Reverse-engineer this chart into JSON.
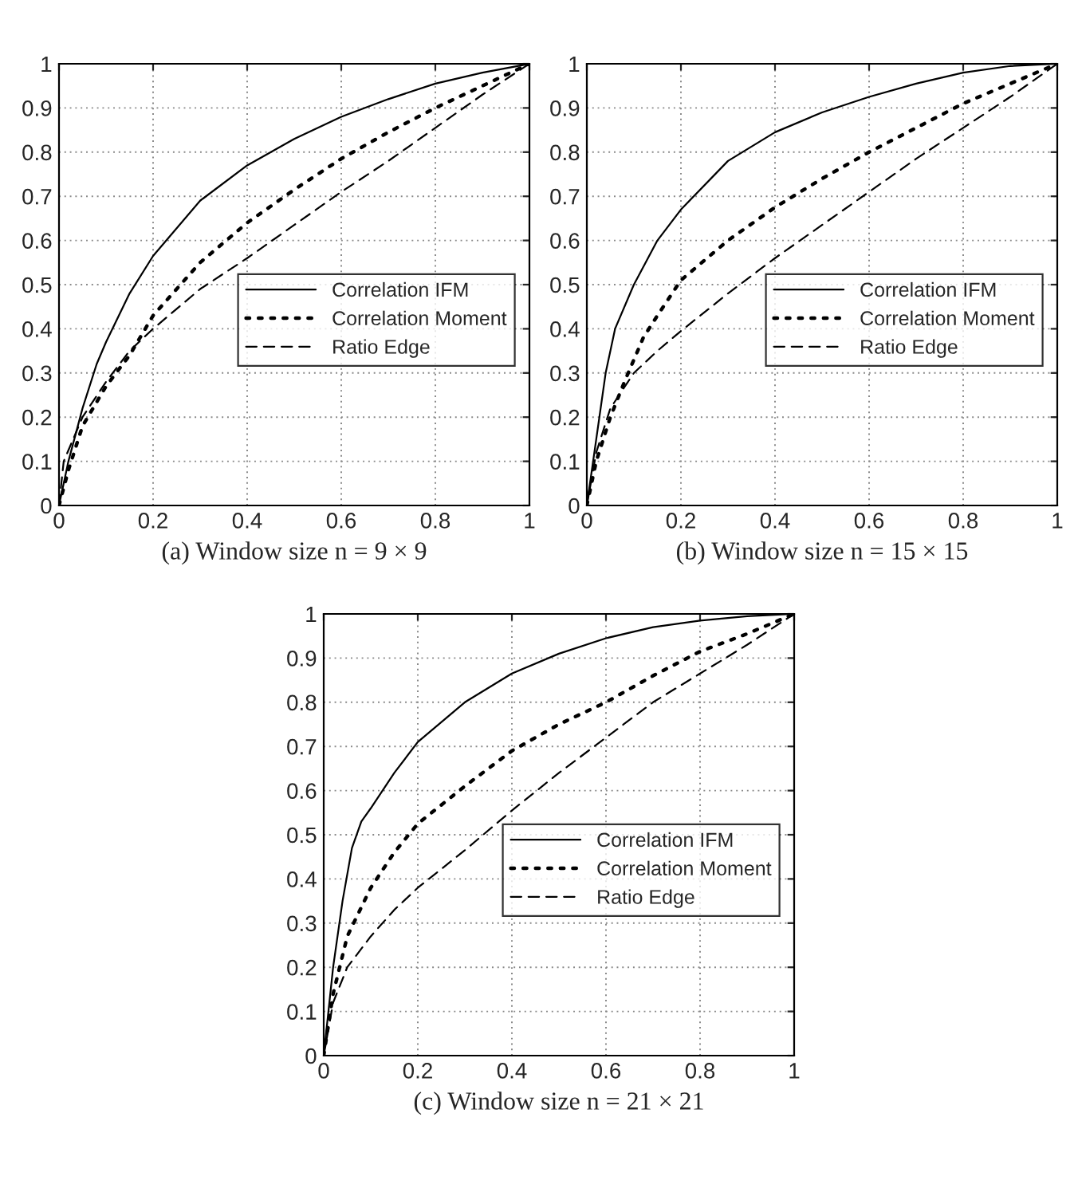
{
  "chart_data": [
    {
      "type": "line",
      "xlabel": "(a) Window size n = 9 × 9",
      "xlim": [
        0,
        1
      ],
      "ylim": [
        0,
        1
      ],
      "xticks": [
        0,
        0.2,
        0.4,
        0.6,
        0.8,
        1
      ],
      "yticks": [
        0,
        0.1,
        0.2,
        0.3,
        0.4,
        0.5,
        0.6,
        0.7,
        0.8,
        0.9,
        1
      ],
      "grid": true,
      "legend": "right",
      "series": [
        {
          "name": "Correlation IFM",
          "color": "#000000",
          "line_style": "solid",
          "x": [
            0,
            0.02,
            0.05,
            0.08,
            0.1,
            0.15,
            0.2,
            0.3,
            0.4,
            0.5,
            0.6,
            0.7,
            0.8,
            0.9,
            1
          ],
          "values": [
            0,
            0.1,
            0.22,
            0.32,
            0.37,
            0.48,
            0.565,
            0.69,
            0.77,
            0.83,
            0.88,
            0.92,
            0.955,
            0.98,
            1
          ]
        },
        {
          "name": "Correlation Moment",
          "color": "#000000",
          "line_style": "dotted",
          "x": [
            0,
            0.02,
            0.05,
            0.1,
            0.15,
            0.2,
            0.3,
            0.4,
            0.5,
            0.6,
            0.7,
            0.8,
            0.9,
            1
          ],
          "values": [
            0,
            0.08,
            0.18,
            0.27,
            0.34,
            0.43,
            0.55,
            0.64,
            0.715,
            0.785,
            0.845,
            0.9,
            0.95,
            1
          ]
        },
        {
          "name": "Ratio Edge",
          "color": "#000000",
          "line_style": "dashed",
          "x": [
            0,
            0.01,
            0.05,
            0.1,
            0.15,
            0.2,
            0.3,
            0.4,
            0.5,
            0.6,
            0.7,
            0.8,
            0.9,
            1
          ],
          "values": [
            0,
            0.1,
            0.2,
            0.28,
            0.35,
            0.4,
            0.49,
            0.56,
            0.635,
            0.71,
            0.78,
            0.855,
            0.93,
            1
          ]
        }
      ]
    },
    {
      "type": "line",
      "xlabel": "(b) Window size n = 15 × 15",
      "xlim": [
        0,
        1
      ],
      "ylim": [
        0,
        1
      ],
      "xticks": [
        0,
        0.2,
        0.4,
        0.6,
        0.8,
        1
      ],
      "yticks": [
        0,
        0.1,
        0.2,
        0.3,
        0.4,
        0.5,
        0.6,
        0.7,
        0.8,
        0.9,
        1
      ],
      "grid": true,
      "legend": "right",
      "series": [
        {
          "name": "Correlation IFM",
          "color": "#000000",
          "line_style": "solid",
          "x": [
            0,
            0.02,
            0.04,
            0.06,
            0.1,
            0.15,
            0.2,
            0.3,
            0.4,
            0.5,
            0.6,
            0.7,
            0.8,
            0.9,
            1
          ],
          "values": [
            0,
            0.15,
            0.3,
            0.4,
            0.5,
            0.6,
            0.67,
            0.78,
            0.845,
            0.89,
            0.925,
            0.955,
            0.98,
            0.995,
            1
          ]
        },
        {
          "name": "Correlation Moment",
          "color": "#000000",
          "line_style": "dotted",
          "x": [
            0,
            0.02,
            0.05,
            0.08,
            0.1,
            0.12,
            0.15,
            0.2,
            0.3,
            0.4,
            0.5,
            0.6,
            0.7,
            0.8,
            0.9,
            1
          ],
          "values": [
            0,
            0.1,
            0.2,
            0.28,
            0.33,
            0.38,
            0.43,
            0.51,
            0.6,
            0.675,
            0.74,
            0.8,
            0.855,
            0.91,
            0.955,
            1
          ]
        },
        {
          "name": "Ratio Edge",
          "color": "#000000",
          "line_style": "dashed",
          "x": [
            0,
            0.02,
            0.05,
            0.1,
            0.15,
            0.2,
            0.3,
            0.4,
            0.5,
            0.6,
            0.7,
            0.8,
            0.9,
            1
          ],
          "values": [
            0,
            0.12,
            0.22,
            0.3,
            0.35,
            0.395,
            0.48,
            0.56,
            0.635,
            0.71,
            0.785,
            0.855,
            0.925,
            1
          ]
        }
      ]
    },
    {
      "type": "line",
      "xlabel": "(c) Window size n = 21 × 21",
      "xlim": [
        0,
        1
      ],
      "ylim": [
        0,
        1
      ],
      "xticks": [
        0,
        0.2,
        0.4,
        0.6,
        0.8,
        1
      ],
      "yticks": [
        0,
        0.1,
        0.2,
        0.3,
        0.4,
        0.5,
        0.6,
        0.7,
        0.8,
        0.9,
        1
      ],
      "grid": true,
      "legend": "right",
      "series": [
        {
          "name": "Correlation IFM",
          "color": "#000000",
          "line_style": "solid",
          "x": [
            0,
            0.02,
            0.04,
            0.06,
            0.08,
            0.1,
            0.15,
            0.2,
            0.3,
            0.4,
            0.5,
            0.6,
            0.7,
            0.8,
            0.9,
            1
          ],
          "values": [
            0,
            0.2,
            0.35,
            0.47,
            0.53,
            0.56,
            0.64,
            0.71,
            0.8,
            0.865,
            0.91,
            0.945,
            0.97,
            0.985,
            0.995,
            1
          ]
        },
        {
          "name": "Correlation Moment",
          "color": "#000000",
          "line_style": "dotted",
          "x": [
            0,
            0.02,
            0.05,
            0.1,
            0.15,
            0.2,
            0.3,
            0.4,
            0.5,
            0.6,
            0.7,
            0.8,
            0.9,
            1
          ],
          "values": [
            0,
            0.14,
            0.27,
            0.38,
            0.46,
            0.525,
            0.61,
            0.69,
            0.75,
            0.8,
            0.86,
            0.915,
            0.955,
            1
          ]
        },
        {
          "name": "Ratio Edge",
          "color": "#000000",
          "line_style": "dashed",
          "x": [
            0,
            0.02,
            0.05,
            0.1,
            0.15,
            0.2,
            0.3,
            0.4,
            0.5,
            0.6,
            0.7,
            0.8,
            0.9,
            1
          ],
          "values": [
            0,
            0.12,
            0.2,
            0.27,
            0.33,
            0.38,
            0.465,
            0.555,
            0.64,
            0.72,
            0.8,
            0.865,
            0.93,
            1
          ]
        }
      ]
    }
  ]
}
